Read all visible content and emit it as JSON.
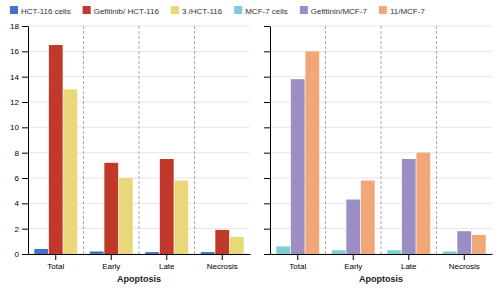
{
  "chart_data": [
    {
      "type": "bar",
      "categories": [
        "Total",
        "Early",
        "Late",
        "Necrosis"
      ],
      "series": [
        {
          "name": "HCT-116 cells",
          "color": "#4472C4",
          "values": [
            0.4,
            0.2,
            0.15,
            0.15
          ]
        },
        {
          "name": "Gefitinib/ HCT-116",
          "color": "#C0392B",
          "values": [
            16.5,
            7.2,
            7.5,
            1.9
          ]
        },
        {
          "name": "3 /HCT-116",
          "color": "#E8D87A",
          "values": [
            13.0,
            6.0,
            5.8,
            1.35
          ]
        }
      ],
      "xlabel": "Apoptosis",
      "ylim": [
        0,
        18
      ],
      "yticks": [
        0,
        2,
        4,
        6,
        8,
        10,
        12,
        14,
        16,
        18
      ],
      "grid": true,
      "legend": "top"
    },
    {
      "type": "bar",
      "categories": [
        "Total",
        "Early",
        "Late",
        "Necrosis"
      ],
      "series": [
        {
          "name": "MCF-7 cells",
          "color": "#7ECDD8",
          "values": [
            0.6,
            0.3,
            0.3,
            0.2
          ]
        },
        {
          "name": "Gefitinin/MCF-7",
          "color": "#9B8EC4",
          "values": [
            13.8,
            4.3,
            7.5,
            1.8
          ]
        },
        {
          "name": "11/MCF-7",
          "color": "#F0A878",
          "values": [
            16.0,
            5.8,
            8.0,
            1.5
          ]
        }
      ],
      "xlabel": "Apoptosis",
      "ylim": [
        0,
        18
      ],
      "yticks": [
        0,
        2,
        4,
        6,
        8,
        10,
        12,
        14,
        16,
        18
      ],
      "grid": true,
      "legend": "top",
      "tick_labels": "x"
    }
  ]
}
